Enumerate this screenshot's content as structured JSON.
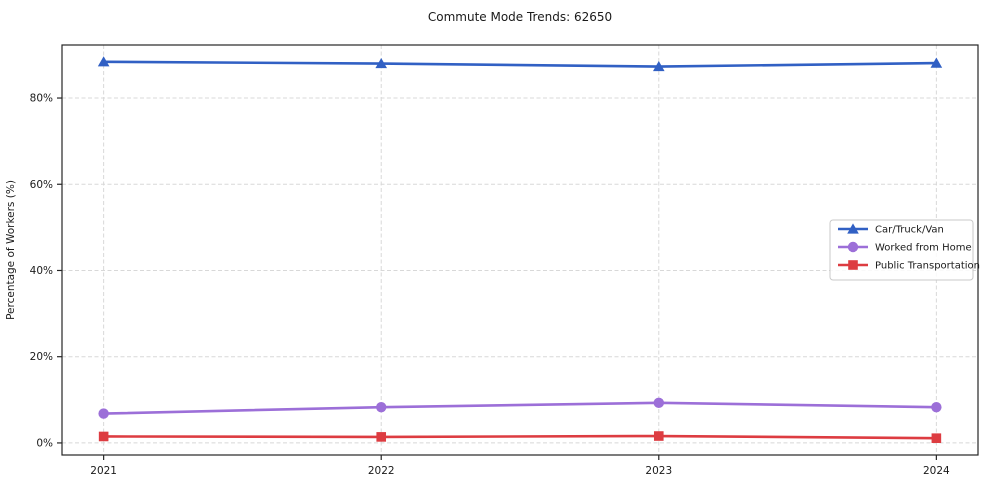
{
  "chart_data": {
    "type": "line",
    "title": "Commute Mode Trends: 62650",
    "xlabel": "",
    "ylabel": "Percentage of Workers (%)",
    "x": [
      2021,
      2022,
      2023,
      2024
    ],
    "x_tick_labels": [
      "2021",
      "2022",
      "2023",
      "2024"
    ],
    "y_ticks": [
      0,
      20,
      40,
      60,
      80
    ],
    "y_tick_labels": [
      "0%",
      "20%",
      "40%",
      "60%",
      "80%"
    ],
    "xlim": [
      2020.85,
      2024.15
    ],
    "ylim": [
      -2.8,
      92.3
    ],
    "grid": true,
    "grid_style": "dashed",
    "legend_position": "center-right",
    "series": [
      {
        "name": "Car/Truck/Van",
        "color": "#3160c4",
        "marker": "triangle",
        "values": [
          88.4,
          88.0,
          87.3,
          88.1
        ]
      },
      {
        "name": "Worked from Home",
        "color": "#9c6fd8",
        "marker": "circle",
        "values": [
          6.8,
          8.3,
          9.3,
          8.3
        ]
      },
      {
        "name": "Public Transportation",
        "color": "#dd3c41",
        "marker": "square",
        "values": [
          1.5,
          1.4,
          1.6,
          1.1
        ]
      }
    ],
    "colors": {
      "grid": "#d8d8d8",
      "spine": "#262626",
      "legend_border": "#c9c9c9",
      "background": "#ffffff"
    }
  }
}
